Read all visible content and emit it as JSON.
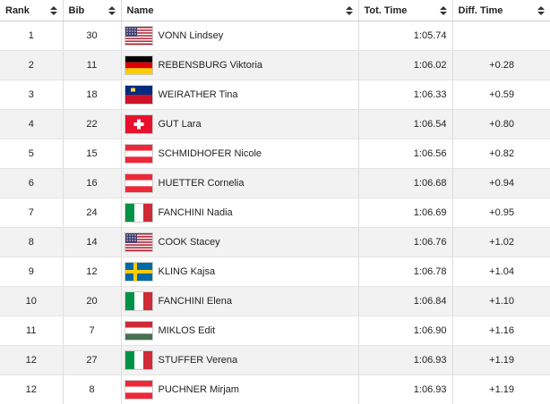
{
  "table": {
    "header": [
      "Rank",
      "Bib",
      "Name",
      "Tot. Time",
      "Diff. Time"
    ],
    "rows": [
      [
        1,
        30,
        "VONN Lindsey",
        "1:05.74"
      ],
      [
        2,
        11,
        "REBENSBURG Viktoria",
        "1:06.02",
        "+0.28"
      ],
      [
        3,
        18,
        "WEIRATHER Tina",
        "1:06.33",
        "+0.59"
      ],
      [
        4,
        22,
        "GUT Lara",
        "1:06.54",
        "+0.80"
      ],
      [
        5,
        15,
        "SCHMIDHOFER Nicole",
        "1:06.56",
        "+0.82"
      ],
      [
        6,
        16,
        "HUETTER Cornelia",
        "1:06.68",
        "+0.94"
      ],
      [
        7,
        24,
        "FANCHINI Nadia",
        "1:06.69",
        "+0.95"
      ],
      [
        8,
        14,
        "COOK Stacey",
        "1:06.76",
        "+1.02"
      ],
      [
        9,
        12,
        "KLING Kajsa",
        "1:06.78",
        "+1.04"
      ],
      [
        10,
        20,
        "FANCHINI Elena",
        "1:06.84",
        "+1.10"
      ],
      [
        11,
        7,
        "MIKLOS Edit",
        "1:06.90",
        "+1.16"
      ],
      [
        12,
        27,
        "STUFFER Verena",
        "1:06.93",
        "+1.19"
      ],
      [
        12,
        8,
        "PUCHNER Mirjam",
        "1:06.93",
        "+1.19"
      ]
    ]
  }
}
